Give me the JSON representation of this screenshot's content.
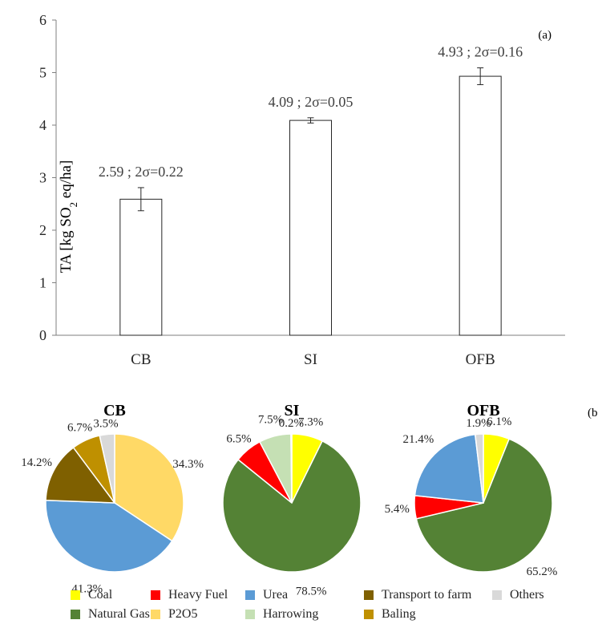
{
  "chart_data": [
    {
      "type": "bar",
      "panel_tag": "(a)",
      "ylabel_prefix": "TA [kg SO",
      "ylabel_sub": "2",
      "ylabel_suffix": " eq/ha]",
      "ylim": [
        0,
        6
      ],
      "yticks": [
        "0",
        "1",
        "2",
        "3",
        "4",
        "5",
        "6"
      ],
      "categories": [
        "CB",
        "SI",
        "OFB"
      ],
      "values": [
        2.59,
        4.09,
        4.93
      ],
      "errors_2sigma": [
        0.22,
        0.05,
        0.16
      ],
      "data_labels": [
        "2.59 ; 2σ=0.22",
        "4.09 ; 2σ=0.05",
        "4.93 ; 2σ=0.16"
      ],
      "grid": false,
      "bar_fill": "#ffffff",
      "bar_stroke": "#262626"
    },
    {
      "type": "pie",
      "panel_tag": "(b)",
      "pies": [
        {
          "title": "CB",
          "slices": [
            {
              "category": "P2O5",
              "value": 34.3,
              "label": "34.3%"
            },
            {
              "category": "Urea",
              "value": 41.3,
              "label": "41.3%"
            },
            {
              "category": "Transport to farm",
              "value": 14.2,
              "label": "14.2%"
            },
            {
              "category": "Baling",
              "value": 6.7,
              "label": "6.7%"
            },
            {
              "category": "Others",
              "value": 3.5,
              "label": "3.5%"
            }
          ]
        },
        {
          "title": "SI",
          "slices": [
            {
              "category": "Coal",
              "value": 7.3,
              "label": "7.3%"
            },
            {
              "category": "Natural Gas",
              "value": 78.5,
              "label": "78.5%"
            },
            {
              "category": "Heavy Fuel",
              "value": 6.5,
              "label": "6.5%"
            },
            {
              "category": "Harrowing",
              "value": 7.5,
              "label": "7.5%"
            },
            {
              "category": "Others",
              "value": 0.2,
              "label": "0.2%"
            }
          ]
        },
        {
          "title": "OFB",
          "slices": [
            {
              "category": "Coal",
              "value": 6.1,
              "label": "6.1%"
            },
            {
              "category": "Natural Gas",
              "value": 65.2,
              "label": "65.2%"
            },
            {
              "category": "Heavy Fuel",
              "value": 5.4,
              "label": "5.4%"
            },
            {
              "category": "Urea",
              "value": 21.4,
              "label": "21.4%"
            },
            {
              "category": "Others",
              "value": 1.9,
              "label": "1.9%"
            }
          ]
        }
      ],
      "legend": [
        {
          "label": "Coal",
          "color": "#ffff00"
        },
        {
          "label": "Heavy Fuel",
          "color": "#ff0000"
        },
        {
          "label": "Urea",
          "color": "#5b9bd5"
        },
        {
          "label": "Transport to farm",
          "color": "#7f6000"
        },
        {
          "label": "Others",
          "color": "#d9d9d9"
        },
        {
          "label": "Natural Gas",
          "color": "#548235"
        },
        {
          "label": "P2O5",
          "color": "#ffd966"
        },
        {
          "label": "Harrowing",
          "color": "#c5e0b4"
        },
        {
          "label": "Baling",
          "color": "#bf9000"
        }
      ],
      "legend_placement": "bottom"
    }
  ]
}
